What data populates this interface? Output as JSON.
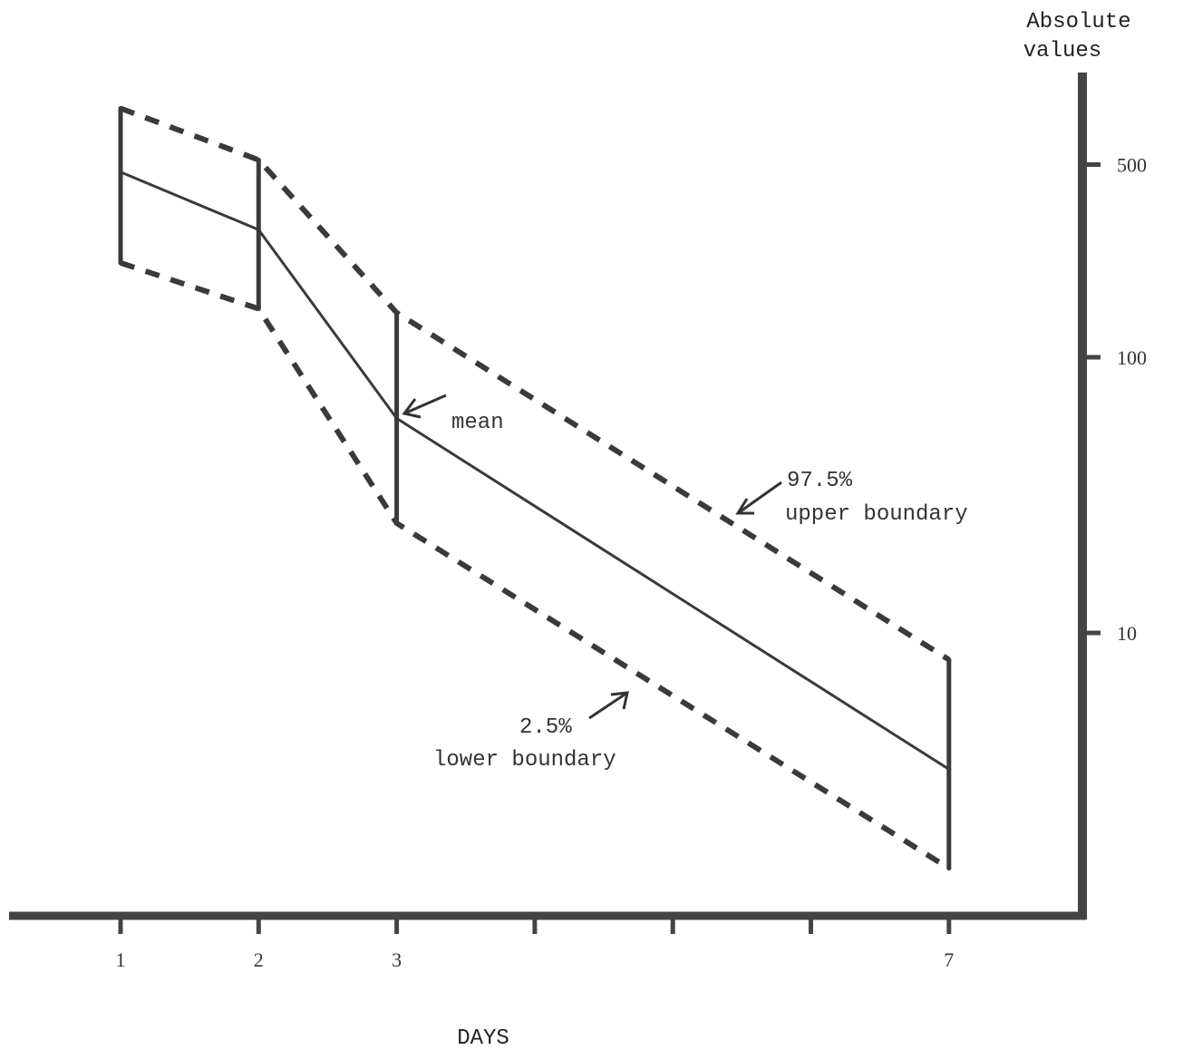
{
  "chart_data": {
    "type": "line",
    "y_scale": "log",
    "ylabel_line1": "Absolute",
    "ylabel_line2": "values",
    "xlabel": "DAYS",
    "x_ticks": [
      1,
      2,
      3,
      4,
      5,
      6,
      7
    ],
    "x_tick_labels": [
      "1",
      "2",
      "3",
      "",
      "",
      "",
      "7"
    ],
    "y_ticks": [
      10,
      100,
      500
    ],
    "y_tick_labels": [
      "10",
      "100",
      "500"
    ],
    "ylim": [
      1.3,
      1200
    ],
    "series": [
      {
        "key": "upper",
        "style": "dashed",
        "x": [
          1,
          2,
          3,
          7
        ],
        "y": [
          800,
          520,
          145,
          8
        ]
      },
      {
        "key": "mean",
        "style": "solid",
        "x": [
          1,
          2,
          3,
          7
        ],
        "y": [
          470,
          290,
          60,
          3.2
        ]
      },
      {
        "key": "lower",
        "style": "dashed",
        "x": [
          1,
          2,
          3,
          7
        ],
        "y": [
          220,
          150,
          25,
          1.4
        ]
      }
    ],
    "annotations": {
      "mean": "mean",
      "upper_pct": "97.5%",
      "upper_text": "upper boundary",
      "lower_pct": "2.5%",
      "lower_text": "lower boundary"
    },
    "grid": false,
    "colors": {
      "ink": "#3a3a3a"
    }
  }
}
